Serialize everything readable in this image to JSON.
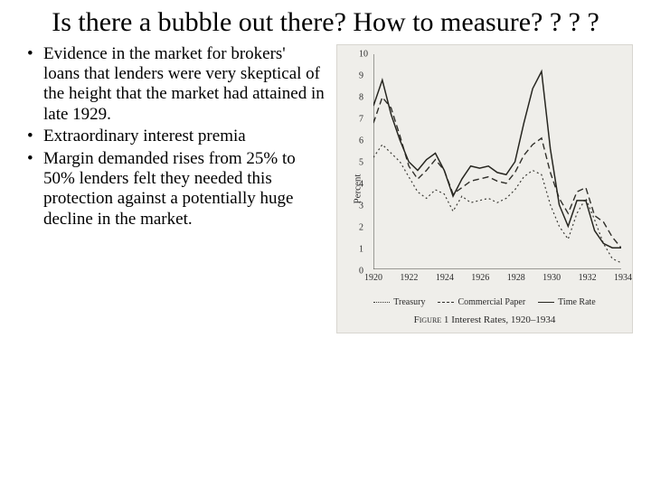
{
  "background_color": "#ffffff",
  "title": "Is there a bubble out there? How to measure? ? ? ?",
  "bullets": [
    "Evidence in the market for brokers' loans that lenders were very skeptical of the height that the market had attained in late 1929.",
    "Extraordinary interest premia",
    "Margin demanded rises from 25% to 50% lenders felt they needed this protection against a potentially huge decline in the market."
  ],
  "chart": {
    "type": "line",
    "background_color": "#efeeea",
    "axis_color": "#45443f",
    "text_color": "#2a2a2a",
    "label_fontsize": 10,
    "ylabel": "Percent",
    "caption_prefix": "Figure 1",
    "caption_text": "Interest Rates, 1920–1934",
    "xlim": [
      1920,
      1934
    ],
    "xtick_step": 2,
    "xticks": [
      1920,
      1922,
      1924,
      1926,
      1928,
      1930,
      1932,
      1934
    ],
    "ylim": [
      0,
      10
    ],
    "ytick_step": 1,
    "yticks": [
      0,
      1,
      2,
      3,
      4,
      5,
      6,
      7,
      8,
      9,
      10
    ],
    "series": [
      {
        "name": "Treasury",
        "dash": "2,3",
        "width": 1.2,
        "color": "#3b3a35",
        "points": [
          [
            1920,
            5.2
          ],
          [
            1920.5,
            5.8
          ],
          [
            1921,
            5.4
          ],
          [
            1921.5,
            5.0
          ],
          [
            1922,
            4.3
          ],
          [
            1922.5,
            3.6
          ],
          [
            1923,
            3.3
          ],
          [
            1923.5,
            3.7
          ],
          [
            1924,
            3.5
          ],
          [
            1924.5,
            2.7
          ],
          [
            1925,
            3.4
          ],
          [
            1925.5,
            3.1
          ],
          [
            1926,
            3.2
          ],
          [
            1926.5,
            3.3
          ],
          [
            1927,
            3.1
          ],
          [
            1927.5,
            3.3
          ],
          [
            1928,
            3.7
          ],
          [
            1928.5,
            4.3
          ],
          [
            1929,
            4.6
          ],
          [
            1929.5,
            4.4
          ],
          [
            1930,
            3.0
          ],
          [
            1930.5,
            2.0
          ],
          [
            1931,
            1.4
          ],
          [
            1931.5,
            2.6
          ],
          [
            1932,
            3.3
          ],
          [
            1932.5,
            2.3
          ],
          [
            1933,
            1.2
          ],
          [
            1933.5,
            0.5
          ],
          [
            1934,
            0.3
          ]
        ]
      },
      {
        "name": "Commercial Paper",
        "dash": "7,4",
        "width": 1.4,
        "color": "#2f2e29",
        "points": [
          [
            1920,
            6.8
          ],
          [
            1920.5,
            8.0
          ],
          [
            1921,
            7.5
          ],
          [
            1921.5,
            6.2
          ],
          [
            1922,
            4.8
          ],
          [
            1922.5,
            4.2
          ],
          [
            1923,
            4.6
          ],
          [
            1923.5,
            5.1
          ],
          [
            1924,
            4.6
          ],
          [
            1924.5,
            3.5
          ],
          [
            1925,
            3.8
          ],
          [
            1925.5,
            4.1
          ],
          [
            1926,
            4.2
          ],
          [
            1926.5,
            4.3
          ],
          [
            1927,
            4.1
          ],
          [
            1927.5,
            4.0
          ],
          [
            1928,
            4.5
          ],
          [
            1928.5,
            5.3
          ],
          [
            1929,
            5.8
          ],
          [
            1929.5,
            6.1
          ],
          [
            1930,
            4.5
          ],
          [
            1930.5,
            3.3
          ],
          [
            1931,
            2.6
          ],
          [
            1931.5,
            3.6
          ],
          [
            1932,
            3.8
          ],
          [
            1932.5,
            2.5
          ],
          [
            1933,
            2.2
          ],
          [
            1933.5,
            1.5
          ],
          [
            1934,
            1.0
          ]
        ]
      },
      {
        "name": "Time Rate",
        "dash": "none",
        "width": 1.5,
        "color": "#26251f",
        "points": [
          [
            1920,
            7.6
          ],
          [
            1920.5,
            8.8
          ],
          [
            1921,
            7.2
          ],
          [
            1921.5,
            6.0
          ],
          [
            1922,
            5.0
          ],
          [
            1922.5,
            4.6
          ],
          [
            1923,
            5.1
          ],
          [
            1923.5,
            5.4
          ],
          [
            1924,
            4.6
          ],
          [
            1924.5,
            3.4
          ],
          [
            1925,
            4.2
          ],
          [
            1925.5,
            4.8
          ],
          [
            1926,
            4.7
          ],
          [
            1926.5,
            4.8
          ],
          [
            1927,
            4.5
          ],
          [
            1927.5,
            4.4
          ],
          [
            1928,
            5.0
          ],
          [
            1928.5,
            6.8
          ],
          [
            1929,
            8.4
          ],
          [
            1929.5,
            9.2
          ],
          [
            1930,
            5.6
          ],
          [
            1930.5,
            3.0
          ],
          [
            1931,
            2.0
          ],
          [
            1931.5,
            3.2
          ],
          [
            1932,
            3.2
          ],
          [
            1932.5,
            1.8
          ],
          [
            1933,
            1.2
          ],
          [
            1933.5,
            1.0
          ],
          [
            1934,
            1.0
          ]
        ]
      }
    ],
    "legend": [
      {
        "label": "Treasury",
        "dash": "dotted"
      },
      {
        "label": "Commercial Paper",
        "dash": "dashed"
      },
      {
        "label": "Time Rate",
        "dash": "solid"
      }
    ]
  }
}
